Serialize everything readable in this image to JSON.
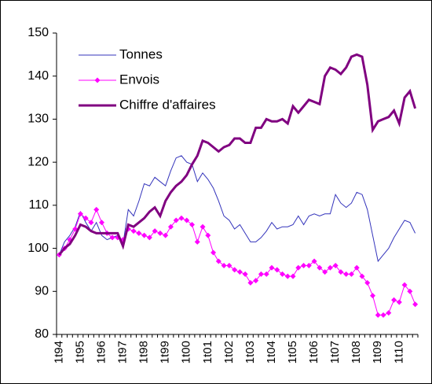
{
  "chart_data": {
    "type": "line",
    "categories": [
      "1t94",
      null,
      null,
      null,
      "1t95",
      null,
      null,
      null,
      "1t96",
      null,
      null,
      null,
      "1t97",
      null,
      null,
      null,
      "1t98",
      null,
      null,
      null,
      "1t99",
      null,
      null,
      null,
      "1t00",
      null,
      null,
      null,
      "1t01",
      null,
      null,
      null,
      "1t02",
      null,
      null,
      null,
      "1t03",
      null,
      null,
      null,
      "1t04",
      null,
      null,
      null,
      "1t05",
      null,
      null,
      null,
      "1t06",
      null,
      null,
      null,
      "1t07",
      null,
      null,
      null,
      "1t08",
      null,
      null,
      null,
      "1t09",
      null,
      null,
      null,
      "1t10",
      null,
      null,
      null
    ],
    "series": [
      {
        "name": "Tonnes",
        "color": "#3333bb",
        "width": 1,
        "marker": false,
        "values": [
          98.5,
          101.5,
          103,
          105,
          108.5,
          106,
          104,
          106,
          103,
          102,
          102.5,
          103,
          101,
          109,
          107.5,
          111,
          115,
          114.5,
          116.5,
          115.5,
          114.5,
          118,
          121,
          121.5,
          120,
          119.5,
          115.5,
          117.5,
          116,
          114,
          111,
          107.5,
          106.5,
          104.5,
          105.5,
          103.5,
          101.5,
          101.5,
          102.5,
          104,
          106,
          104.5,
          105,
          105,
          105.5,
          107.5,
          105.5,
          107.5,
          108,
          107.5,
          108,
          108,
          112.5,
          110.5,
          109.5,
          110.5,
          113,
          112.5,
          109,
          103,
          97,
          98.5,
          100,
          102.5,
          104.5,
          106.5,
          106,
          103.5
        ]
      },
      {
        "name": "Envois",
        "color": "#ff00ff",
        "width": 1,
        "marker": true,
        "values": [
          98.5,
          100,
          102,
          104.5,
          108,
          107,
          106,
          109,
          106,
          103.5,
          102.5,
          102.5,
          102,
          104.5,
          104,
          103.5,
          103,
          102.5,
          104,
          103.5,
          103,
          105,
          106.5,
          107,
          106.5,
          105.5,
          101.5,
          105,
          103,
          99,
          97,
          96,
          96,
          95,
          94.5,
          94,
          92,
          92.5,
          94,
          94,
          95.5,
          95,
          94,
          93.5,
          93.5,
          95.5,
          96,
          96,
          97,
          95.5,
          94.5,
          95.5,
          96,
          94.5,
          94,
          94,
          95.5,
          93.5,
          92,
          89,
          84.5,
          84.5,
          85,
          88,
          87.5,
          91.5,
          90,
          87
        ]
      },
      {
        "name": "Chiffre d'affaires",
        "color": "#800080",
        "width": 3,
        "marker": false,
        "values": [
          98.5,
          100,
          101,
          103,
          105.5,
          105,
          104,
          103.5,
          103.5,
          103.5,
          103.5,
          103.5,
          100.5,
          105.5,
          105,
          106,
          107,
          108.5,
          109.5,
          107.5,
          111,
          113,
          114.5,
          115.5,
          117,
          119.5,
          121.5,
          125,
          124.5,
          123.5,
          122.5,
          123.5,
          124,
          125.5,
          125.5,
          124.5,
          124.5,
          128,
          128,
          130,
          129.5,
          129.5,
          130,
          129,
          133,
          131.5,
          133,
          134.5,
          134,
          133.5,
          140,
          142,
          141.5,
          140.5,
          142,
          144.5,
          145,
          144.5,
          138,
          127.5,
          129.5,
          130,
          130.5,
          132,
          129,
          135,
          136.5,
          132.5
        ]
      }
    ],
    "ylim": [
      80,
      150
    ],
    "yticks": [
      80,
      90,
      100,
      110,
      120,
      130,
      140,
      150
    ],
    "grid": false,
    "legend": "upper left"
  }
}
